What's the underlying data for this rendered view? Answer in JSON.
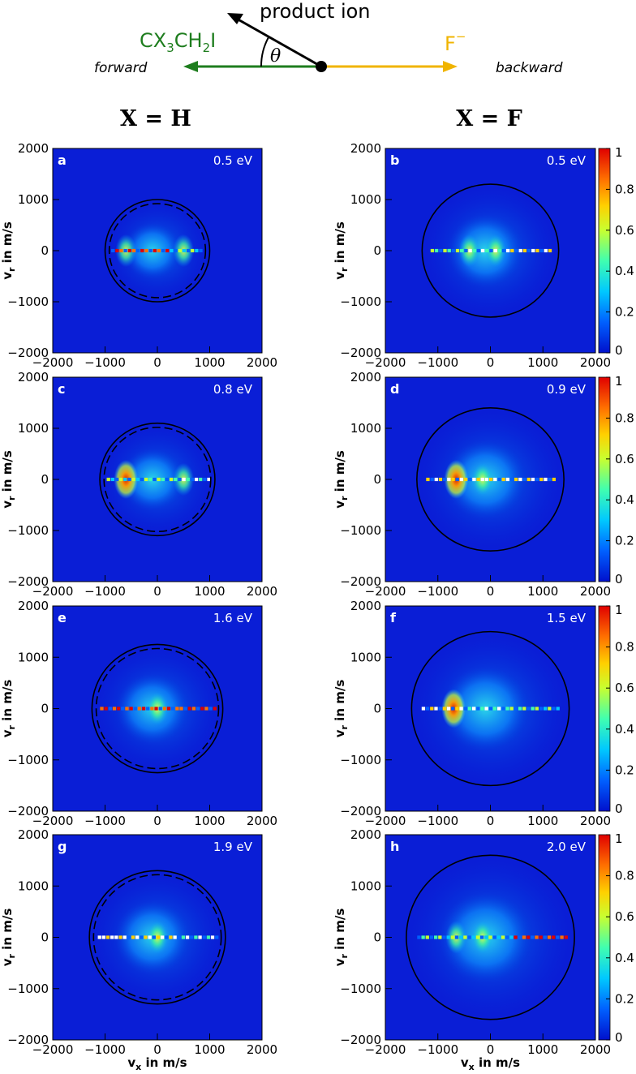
{
  "diagram": {
    "product_label": "product ion",
    "molecule_label": "CX3CH2I",
    "molecule_main": "CX",
    "molecule_sub1": "3",
    "molecule_mid": "CH",
    "molecule_sub2": "2",
    "molecule_end": "I",
    "anion_label": "F−",
    "anion_base": "F",
    "anion_sup": "−",
    "angle_label": "θ",
    "forward_label": "forward",
    "backward_label": "backward",
    "colors": {
      "product": "#000000",
      "molecule": "#1e7d1e",
      "anion": "#f0b400"
    }
  },
  "column_titles": [
    "X = H",
    "X = F"
  ],
  "colorbar": {
    "ticks": [
      "0",
      "0.2",
      "0.4",
      "0.6",
      "0.8",
      "1"
    ],
    "range": [
      0,
      1
    ]
  },
  "chart_data": [
    {
      "type": "heatmap",
      "panel": "a",
      "energy": "0.5 eV",
      "xlim": [
        -2000,
        2000
      ],
      "ylim": [
        -2000,
        2000
      ],
      "xticks": [
        "−2000",
        "−1000",
        "0",
        "1000",
        "2000"
      ],
      "yticks": [
        "2000",
        "1000",
        "0",
        "−1000",
        "−2000"
      ],
      "xlabel": "v_x in m/s",
      "ylabel": "v_r in m/s",
      "circle_solid_radius": 1000,
      "circle_dashed_radius": 920,
      "peaks": [
        [
          -600,
          0
        ],
        [
          500,
          0
        ]
      ]
    },
    {
      "type": "heatmap",
      "panel": "b",
      "energy": "0.5 eV",
      "xlim": [
        -2000,
        2000
      ],
      "ylim": [
        -2000,
        2000
      ],
      "xticks": [
        "−2000",
        "−1000",
        "0",
        "1000",
        "2000"
      ],
      "yticks": [
        "2000",
        "1000",
        "0",
        "−1000",
        "−2000"
      ],
      "xlabel": "v_x in m/s",
      "ylabel": "v_r in m/s",
      "circle_solid_radius": 1300,
      "peaks": [
        [
          -400,
          0
        ],
        [
          100,
          0
        ]
      ]
    },
    {
      "type": "heatmap",
      "panel": "c",
      "energy": "0.8 eV",
      "xlim": [
        -2000,
        2000
      ],
      "ylim": [
        -2000,
        2000
      ],
      "xticks": [
        "−2000",
        "−1000",
        "0",
        "1000",
        "2000"
      ],
      "yticks": [
        "2000",
        "1000",
        "0",
        "−1000",
        "−2000"
      ],
      "xlabel": "v_x in m/s",
      "ylabel": "v_r in m/s",
      "circle_solid_radius": 1100,
      "circle_dashed_radius": 1020,
      "peaks": [
        [
          -600,
          0
        ],
        [
          500,
          0
        ]
      ]
    },
    {
      "type": "heatmap",
      "panel": "d",
      "energy": "0.9 eV",
      "xlim": [
        -2000,
        2000
      ],
      "ylim": [
        -2000,
        2000
      ],
      "xticks": [
        "−2000",
        "−1000",
        "0",
        "1000",
        "2000"
      ],
      "yticks": [
        "2000",
        "1000",
        "0",
        "−1000",
        "−2000"
      ],
      "xlabel": "v_x in m/s",
      "ylabel": "v_r in m/s",
      "circle_solid_radius": 1400,
      "peaks": [
        [
          -650,
          0
        ],
        [
          -150,
          0
        ]
      ]
    },
    {
      "type": "heatmap",
      "panel": "e",
      "energy": "1.6 eV",
      "xlim": [
        -2000,
        2000
      ],
      "ylim": [
        -2000,
        2000
      ],
      "xticks": [
        "−2000",
        "−1000",
        "0",
        "1000",
        "2000"
      ],
      "yticks": [
        "2000",
        "1000",
        "0",
        "−1000",
        "−2000"
      ],
      "xlabel": "v_x in m/s",
      "ylabel": "v_r in m/s",
      "circle_solid_radius": 1250,
      "circle_dashed_radius": 1170,
      "peaks": [
        [
          0,
          0
        ]
      ]
    },
    {
      "type": "heatmap",
      "panel": "f",
      "energy": "1.5 eV",
      "xlim": [
        -2000,
        2000
      ],
      "ylim": [
        -2000,
        2000
      ],
      "xticks": [
        "−2000",
        "−1000",
        "0",
        "1000",
        "2000"
      ],
      "yticks": [
        "2000",
        "1000",
        "0",
        "−1000",
        "−2000"
      ],
      "xlabel": "v_x in m/s",
      "ylabel": "v_r in m/s",
      "circle_solid_radius": 1500,
      "peaks": [
        [
          -700,
          0
        ]
      ]
    },
    {
      "type": "heatmap",
      "panel": "g",
      "energy": "1.9 eV",
      "xlim": [
        -2000,
        2000
      ],
      "ylim": [
        -2000,
        2000
      ],
      "xticks": [
        "−2000",
        "−1000",
        "0",
        "1000",
        "2000"
      ],
      "yticks": [
        "2000",
        "1000",
        "0",
        "−1000",
        "−2000"
      ],
      "xlabel": "v_x in m/s",
      "ylabel": "v_r in m/s",
      "circle_solid_radius": 1300,
      "circle_dashed_radius": 1220,
      "peaks": [
        [
          0,
          0
        ]
      ]
    },
    {
      "type": "heatmap",
      "panel": "h",
      "energy": "2.0 eV",
      "xlim": [
        -2000,
        2000
      ],
      "ylim": [
        -2000,
        2000
      ],
      "xticks": [
        "−2000",
        "−1000",
        "0",
        "1000",
        "2000"
      ],
      "yticks": [
        "2000",
        "1000",
        "0",
        "−1000",
        "−2000"
      ],
      "xlabel": "v_x in m/s",
      "ylabel": "v_r in m/s",
      "circle_solid_radius": 1600,
      "peaks": [
        [
          -650,
          0
        ],
        [
          -150,
          0
        ]
      ]
    }
  ]
}
